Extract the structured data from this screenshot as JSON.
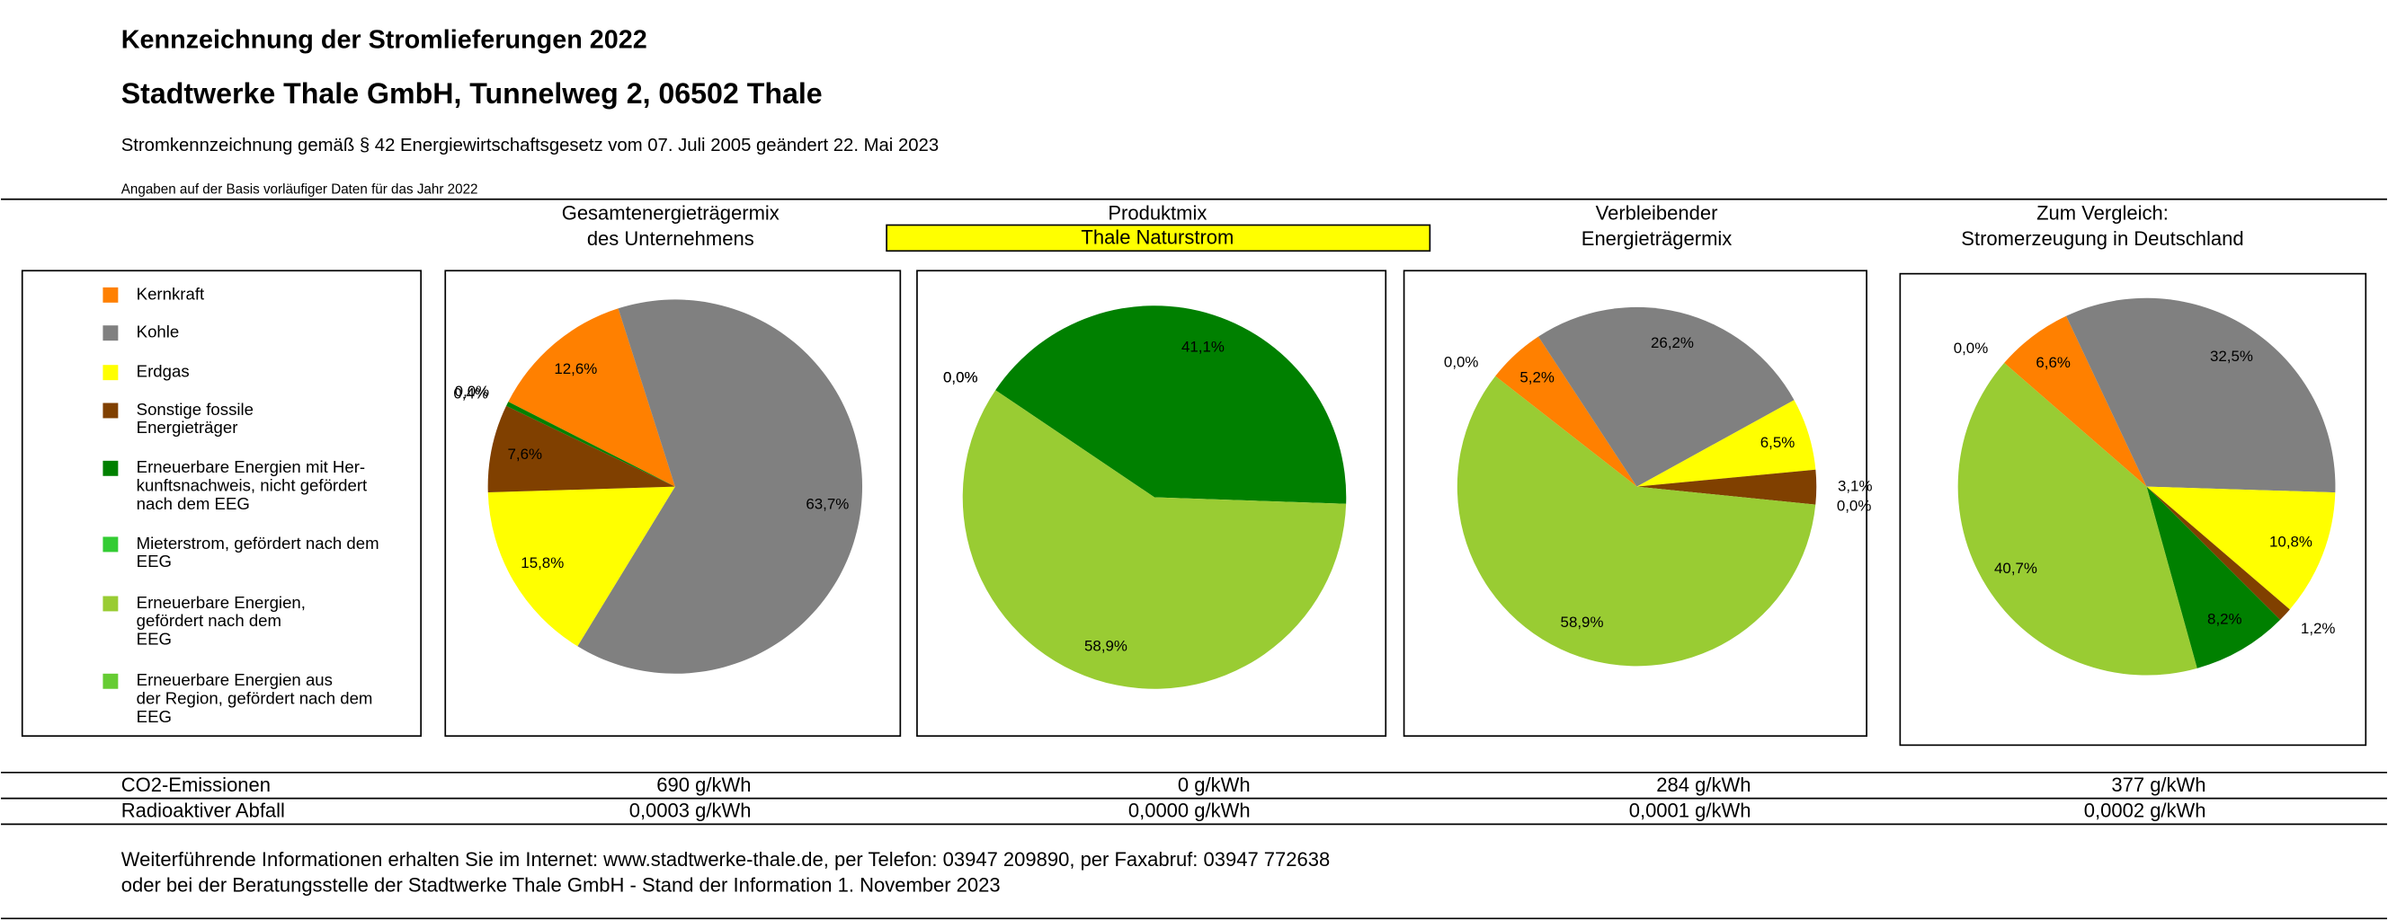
{
  "header": {
    "title": "Kennzeichnung der Stromlieferungen 2022",
    "company": "Stadtwerke Thale GmbH, Tunnelweg 2, 06502 Thale",
    "law": "Stromkennzeichnung gemäß § 42 Energiewirtschaftsgesetz vom 07. Juli 2005 geändert 22. Mai 2023",
    "note": "Angaben auf der Basis vorläufiger Daten für das Jahr 2022"
  },
  "legend": {
    "items": [
      {
        "lines": [
          "Kernkraft"
        ],
        "color": "#ff8000"
      },
      {
        "lines": [
          "Kohle"
        ],
        "color": "#808080"
      },
      {
        "lines": [
          "Erdgas"
        ],
        "color": "#ffff00"
      },
      {
        "lines": [
          "Sonstige fossile",
          "Energieträger"
        ],
        "color": "#804000"
      },
      {
        "lines": [
          "Erneuerbare Energien mit Her-",
          "kunftsnachweis, nicht gefördert",
          "nach dem EEG"
        ],
        "color": "#008000"
      },
      {
        "lines": [
          "Mieterstrom, gefördert nach dem",
          "EEG"
        ],
        "color": "#33cc33"
      },
      {
        "lines": [
          "Erneuerbare Energien,",
          "gefördert nach dem",
          "EEG"
        ],
        "color": "#99cc33"
      },
      {
        "lines": [
          "Erneuerbare Energien aus",
          "der Region, gefördert nach dem",
          "EEG"
        ],
        "color": "#66cc33"
      }
    ]
  },
  "chart_data": [
    {
      "type": "pie",
      "title": [
        "Gesamtenergieträgermix",
        "des Unternehmens"
      ],
      "values": [
        12.6,
        63.7,
        15.8,
        7.6,
        0.4,
        0.0,
        0,
        0
      ],
      "value_labels": [
        "12,6%",
        "63,7%",
        "15,8%",
        "7,6%",
        "0,4%",
        "0,0%",
        null,
        null
      ]
    },
    {
      "type": "pie",
      "title": [
        "Produktmix"
      ],
      "subtitle": "Thale Naturstrom",
      "values": [
        0,
        0,
        0,
        0.0,
        41.1,
        0,
        58.9,
        0.0
      ],
      "value_labels": [
        null,
        null,
        null,
        "0,0%",
        "41,1%",
        null,
        "58,9%",
        "0,0%"
      ]
    },
    {
      "type": "pie",
      "title": [
        "Verbleibender",
        "Energieträgermix"
      ],
      "values": [
        5.2,
        26.2,
        6.5,
        3.1,
        0.0,
        0,
        58.9,
        0.0
      ],
      "value_labels": [
        "5,2%",
        "26,2%",
        "6,5%",
        "3,1%",
        "0,0%",
        null,
        "58,9%",
        "0,0%"
      ]
    },
    {
      "type": "pie",
      "title": [
        "Zum Vergleich:",
        "Stromerzeugung in Deutschland"
      ],
      "values": [
        6.6,
        32.5,
        10.8,
        1.2,
        8.2,
        0,
        40.7,
        0.0
      ],
      "value_labels": [
        "6,6%",
        "32,5%",
        "10,8%",
        "1,2%",
        "8,2%",
        null,
        "40,7%",
        "0,0%"
      ]
    }
  ],
  "table": {
    "rows": [
      [
        "CO2-Emissionen",
        "690 g/kWh",
        "0 g/kWh",
        "284 g/kWh",
        "377 g/kWh"
      ],
      [
        "Radioaktiver Abfall",
        "0,0003 g/kWh",
        "0,0000 g/kWh",
        "0,0001 g/kWh",
        "0,0002 g/kWh"
      ]
    ]
  },
  "footer": {
    "lines": [
      "Weiterführende Informationen erhalten Sie im Internet: www.stadtwerke-thale.de, per Telefon: 03947 209890, per Faxabruf: 03947 772638",
      "oder bei der Beratungsstelle der Stadtwerke Thale GmbH - Stand der Information 1. November 2023"
    ]
  }
}
